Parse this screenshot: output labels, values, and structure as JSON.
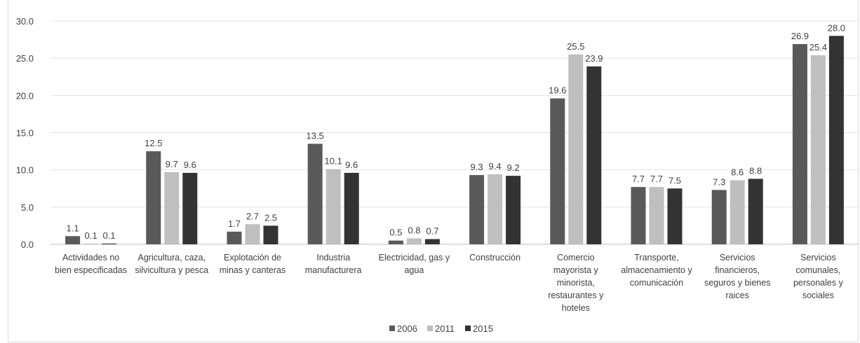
{
  "chart_data": {
    "type": "bar",
    "categories": [
      [
        "Actividades no",
        "bien especificadas"
      ],
      [
        "Agricultura, caza,",
        "silvicultura y pesca"
      ],
      [
        "Explotación de",
        "minas y canteras"
      ],
      [
        "Industria",
        "manufacturera"
      ],
      [
        "Electricidad, gas y",
        "agua"
      ],
      [
        "Construcción"
      ],
      [
        "Comercio",
        "mayorista y",
        "minorista,",
        "restaurantes y",
        "hoteles"
      ],
      [
        "Transporte,",
        "almacenamiento y",
        "comunicación"
      ],
      [
        "Servicios",
        "financieros,",
        "seguros y bienes",
        "raices"
      ],
      [
        "Servicios",
        "comunales,",
        "personales y",
        "sociales"
      ]
    ],
    "series": [
      {
        "name": "2006",
        "color": "#595959",
        "values": [
          1.1,
          12.5,
          1.7,
          13.5,
          0.5,
          9.3,
          19.6,
          7.7,
          7.3,
          26.9
        ]
      },
      {
        "name": "2011",
        "color": "#bfbfbf",
        "values": [
          0.1,
          9.7,
          2.7,
          10.1,
          0.8,
          9.4,
          25.5,
          7.7,
          8.6,
          25.4
        ]
      },
      {
        "name": "2015",
        "color": "#333333",
        "values": [
          0.1,
          9.6,
          2.5,
          9.6,
          0.7,
          9.2,
          23.9,
          7.5,
          8.8,
          28.0
        ]
      }
    ],
    "ylim": [
      0,
      30
    ],
    "yticks": [
      "0.0",
      "5.0",
      "10.0",
      "15.0",
      "20.0",
      "25.0",
      "30.0"
    ],
    "grid": true,
    "legend_position": "bottom-center",
    "data_labels": true
  }
}
